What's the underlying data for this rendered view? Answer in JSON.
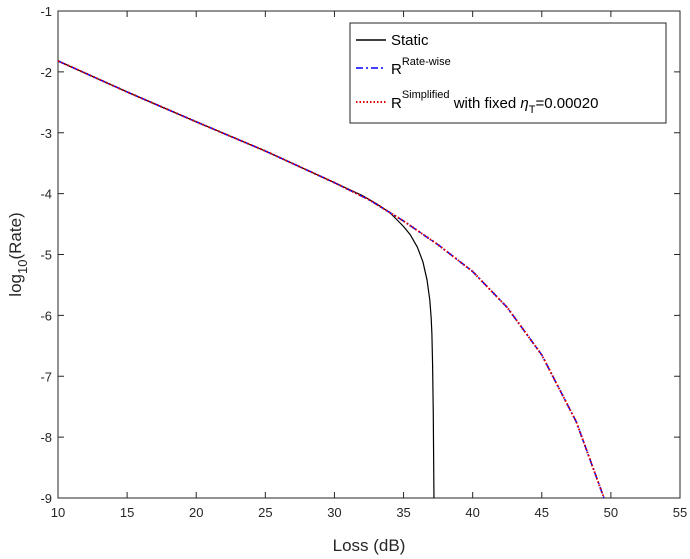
{
  "chart_data": {
    "type": "line",
    "xlabel": "Loss (dB)",
    "ylabel_main": "log",
    "ylabel_sub": "10",
    "ylabel_tail": "(Rate)",
    "xlim": [
      10,
      55
    ],
    "ylim": [
      -9,
      -1
    ],
    "xticks": [
      10,
      15,
      20,
      25,
      30,
      35,
      40,
      45,
      50,
      55
    ],
    "yticks": [
      -9,
      -8,
      -7,
      -6,
      -5,
      -4,
      -3,
      -2,
      -1
    ],
    "grid": false,
    "legend_position": "top-right",
    "series": [
      {
        "name": "Static",
        "color": "#000000",
        "style": "solid",
        "x": [
          10,
          15,
          20,
          25,
          30,
          32,
          33,
          34,
          35,
          35.5,
          36,
          36.4,
          36.7,
          36.9,
          37.0,
          37.05,
          37.1,
          37.15,
          37.2
        ],
        "y": [
          -1.82,
          -2.33,
          -2.82,
          -3.3,
          -3.82,
          -4.03,
          -4.16,
          -4.31,
          -4.54,
          -4.68,
          -4.88,
          -5.12,
          -5.42,
          -5.75,
          -6.05,
          -6.3,
          -6.8,
          -7.6,
          -9.0
        ]
      },
      {
        "name": "Rate-wise",
        "legend_base": "R",
        "legend_sup": "Rate-wise",
        "color": "#0000ff",
        "style": "dashdot",
        "x": [
          10,
          15,
          20,
          25,
          30,
          32.5,
          35,
          37.5,
          40,
          42.5,
          45,
          47.5,
          49.5
        ],
        "y": [
          -1.82,
          -2.33,
          -2.82,
          -3.3,
          -3.82,
          -4.1,
          -4.45,
          -4.84,
          -5.28,
          -5.87,
          -6.65,
          -7.75,
          -9.0
        ]
      },
      {
        "name": "Simplified",
        "legend_base": "R",
        "legend_sup": "Simplified",
        "legend_mid": " with fixed ",
        "legend_eta": "η",
        "legend_eta_sub": "T",
        "legend_value": "=0.00020",
        "color": "#e00000",
        "style": "dotted",
        "x": [
          10,
          15,
          20,
          25,
          30,
          32.5,
          35,
          37.5,
          40,
          42.5,
          45,
          47.5,
          49.5
        ],
        "y": [
          -1.82,
          -2.33,
          -2.82,
          -3.3,
          -3.82,
          -4.1,
          -4.45,
          -4.84,
          -5.28,
          -5.87,
          -6.65,
          -7.75,
          -9.0
        ]
      }
    ]
  }
}
